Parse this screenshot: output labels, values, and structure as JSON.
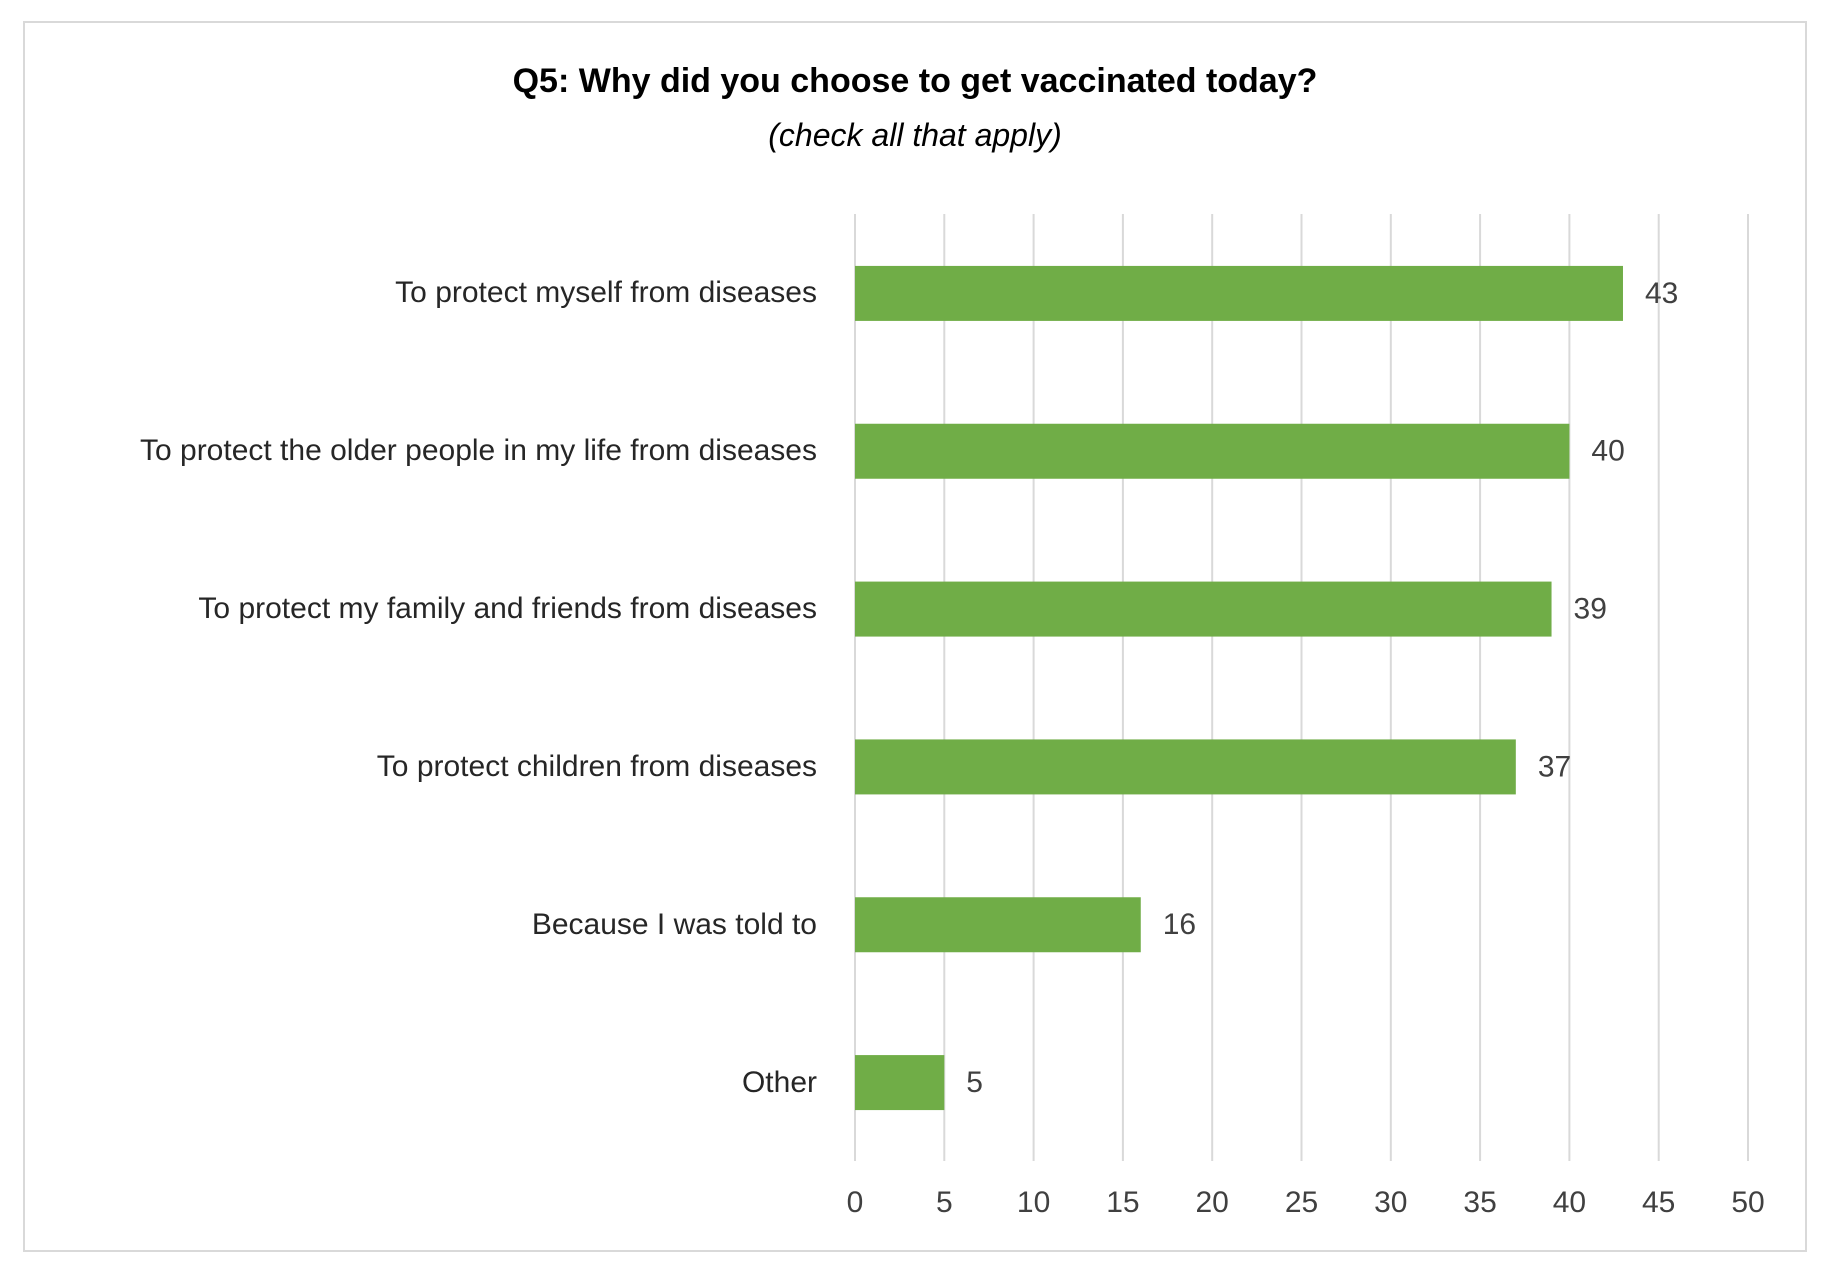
{
  "chart_data": {
    "type": "bar",
    "orientation": "horizontal",
    "title": "Q5: Why did you choose to get vaccinated today?",
    "subtitle": "(check all that apply)",
    "categories": [
      "To protect myself from diseases",
      "To protect the older people in my life from diseases",
      "To protect my family and friends from diseases",
      "To protect children from diseases",
      "Because I was told to",
      "Other"
    ],
    "values": [
      43,
      40,
      39,
      37,
      16,
      5
    ],
    "color": "#70ad47",
    "xlim": [
      0,
      50
    ],
    "xticks": [
      0,
      5,
      10,
      15,
      20,
      25,
      30,
      35,
      40,
      45,
      50
    ],
    "grid": true
  }
}
